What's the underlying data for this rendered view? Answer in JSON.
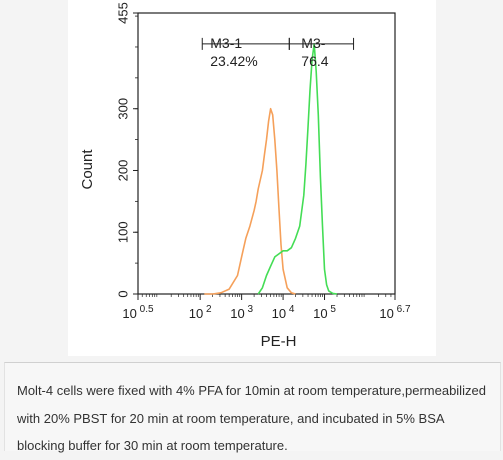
{
  "chart_data": {
    "type": "area",
    "title": "",
    "xlabel": "PE-H",
    "ylabel": "Count",
    "xscale": "log",
    "xlim": [
      0.5,
      6.7
    ],
    "ylim": [
      0,
      455
    ],
    "x_ticks": [
      {
        "value": 0.5,
        "base": "10",
        "exp": "0.5"
      },
      {
        "value": 2,
        "base": "10",
        "exp": "2"
      },
      {
        "value": 3,
        "base": "10",
        "exp": "3"
      },
      {
        "value": 4,
        "base": "10",
        "exp": "4"
      },
      {
        "value": 5,
        "base": "10",
        "exp": "5"
      },
      {
        "value": 6.7,
        "base": "10",
        "exp": "6.7"
      }
    ],
    "y_ticks": [
      0,
      100,
      200,
      300,
      455
    ],
    "grid": false,
    "series": [
      {
        "color": "#f5a05a",
        "x": [
          2.1,
          2.3,
          2.5,
          2.7,
          2.9,
          3.0,
          3.1,
          3.2,
          3.3,
          3.35,
          3.4,
          3.5,
          3.55,
          3.6,
          3.65,
          3.7,
          3.75,
          3.8,
          3.85,
          3.9,
          3.95,
          4.0,
          4.1,
          4.2,
          4.3
        ],
        "y": [
          0,
          0,
          2,
          8,
          30,
          60,
          90,
          110,
          135,
          150,
          170,
          200,
          225,
          250,
          280,
          300,
          290,
          250,
          200,
          140,
          80,
          40,
          10,
          2,
          0
        ]
      },
      {
        "color": "#44dd55",
        "x": [
          3.4,
          3.5,
          3.6,
          3.7,
          3.8,
          3.9,
          4.0,
          4.1,
          4.2,
          4.3,
          4.4,
          4.5,
          4.55,
          4.6,
          4.65,
          4.7,
          4.75,
          4.8,
          4.85,
          4.9,
          4.95,
          5.0,
          5.05,
          5.1,
          5.2,
          5.3
        ],
        "y": [
          0,
          10,
          30,
          45,
          60,
          65,
          70,
          70,
          75,
          90,
          110,
          160,
          210,
          270,
          330,
          380,
          405,
          360,
          290,
          190,
          110,
          40,
          15,
          5,
          1,
          0
        ]
      }
    ],
    "annotations": [
      {
        "gate": "M3-1",
        "percent": "23.42%",
        "x_start": 2.05,
        "x_end": 4.15,
        "y": 405
      },
      {
        "gate": "M3-",
        "percent": "76.4",
        "x_start": 4.15,
        "x_end": 5.7,
        "y": 405
      }
    ]
  },
  "caption": "Molt-4 cells were fixed with 4% PFA for 10min at room temperature,permeabilized with 20% PBST for 20 min at room temperature, and incubated in 5% BSA blocking buffer for 30 min at room temperature."
}
